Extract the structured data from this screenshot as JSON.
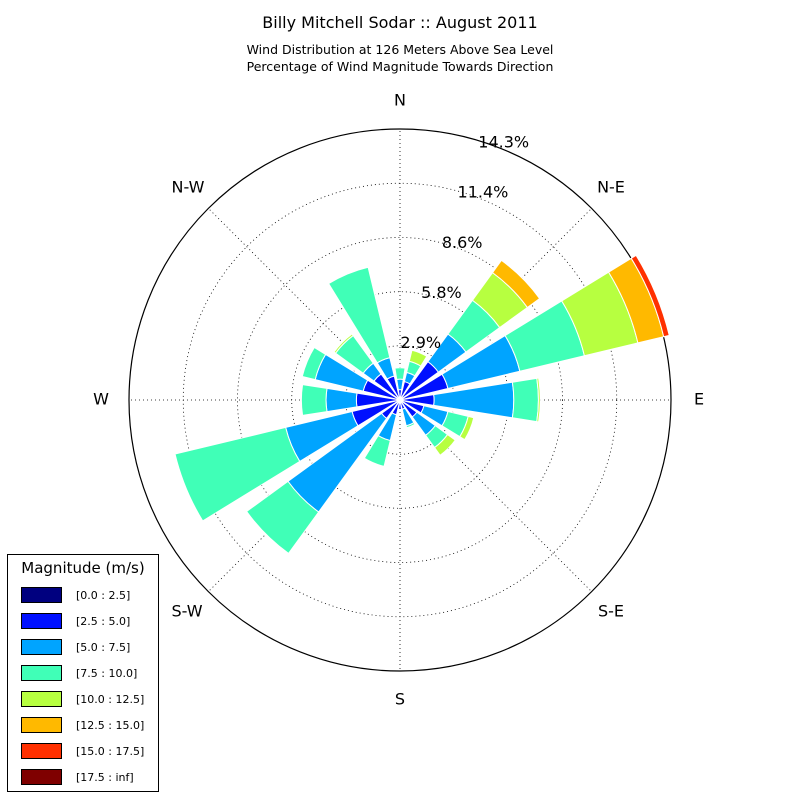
{
  "chart_data": {
    "type": "windrose",
    "title": "Billy Mitchell Sodar :: August 2011",
    "subtitle_lines": [
      "Wind Distribution at 126 Meters Above Sea Level",
      "Percentage of Wind Magnitude Towards Direction"
    ],
    "direction_labels": [
      "N",
      "N-E",
      "E",
      "S-E",
      "S",
      "S-W",
      "W",
      "N-W"
    ],
    "radial_ticks": [
      "2.9%",
      "5.8%",
      "8.6%",
      "11.4%",
      "14.3%"
    ],
    "radial_tick_values": [
      2.86,
      5.71,
      8.57,
      11.43,
      14.29
    ],
    "rmax": 14.29,
    "legend": {
      "title": "Magnitude (m/s)",
      "bins": [
        {
          "label": "[0.0 : 2.5]",
          "color": "#00007f"
        },
        {
          "label": "[2.5 : 5.0]",
          "color": "#0010ff"
        },
        {
          "label": "[5.0 : 7.5]",
          "color": "#00a4ff"
        },
        {
          "label": "[7.5 : 10.0]",
          "color": "#40ffb7"
        },
        {
          "label": "[10.0 : 12.5]",
          "color": "#b7ff40"
        },
        {
          "label": "[12.5 : 15.0]",
          "color": "#ffb900"
        },
        {
          "label": "[15.0 : 17.5]",
          "color": "#ff3000"
        },
        {
          "label": "[17.5 : inf]",
          "color": "#7f0000"
        }
      ]
    },
    "sector_width_deg": 18,
    "sectors": [
      {
        "direction_deg": 0,
        "cumulative": [
          0.15,
          0.55,
          1.1,
          1.7
        ]
      },
      {
        "direction_deg": 22.5,
        "cumulative": [
          0.15,
          1.0,
          1.5,
          2.1,
          2.7
        ]
      },
      {
        "direction_deg": 45,
        "cumulative": [
          0.15,
          2.5,
          4.3,
          6.5,
          8.3,
          9.1
        ]
      },
      {
        "direction_deg": 67.5,
        "cumulative": [
          0.15,
          2.6,
          6.5,
          10.0,
          12.9,
          14.3,
          14.6
        ]
      },
      {
        "direction_deg": 90,
        "cumulative": [
          0.15,
          1.8,
          6.0,
          7.3,
          7.4
        ]
      },
      {
        "direction_deg": 112.5,
        "cumulative": [
          0.15,
          1.3,
          2.6,
          3.7,
          4.0
        ]
      },
      {
        "direction_deg": 135,
        "cumulative": [
          0.15,
          1.1,
          2.3,
          3.1,
          3.6
        ]
      },
      {
        "direction_deg": 157.5,
        "cumulative": [
          0.15,
          0.5,
          1.4,
          1.5
        ]
      },
      {
        "direction_deg": 180,
        "cumulative": [
          0.15,
          0.5,
          0.5
        ]
      },
      {
        "direction_deg": 202.5,
        "cumulative": [
          0.15,
          0.8,
          2.2,
          3.6
        ]
      },
      {
        "direction_deg": 225,
        "cumulative": [
          0.15,
          1.2,
          7.3,
          10.0
        ]
      },
      {
        "direction_deg": 247.5,
        "cumulative": [
          0.15,
          2.6,
          6.2,
          12.2
        ]
      },
      {
        "direction_deg": 270,
        "cumulative": [
          0.15,
          2.3,
          3.9,
          5.2
        ]
      },
      {
        "direction_deg": 292.5,
        "cumulative": [
          0.15,
          2.0,
          4.6,
          5.3
        ]
      },
      {
        "direction_deg": 315,
        "cumulative": [
          0.15,
          1.7,
          2.4,
          4.2,
          4.3
        ]
      },
      {
        "direction_deg": 337.5,
        "cumulative": [
          0.15,
          1.3,
          2.3,
          7.2
        ]
      }
    ]
  }
}
